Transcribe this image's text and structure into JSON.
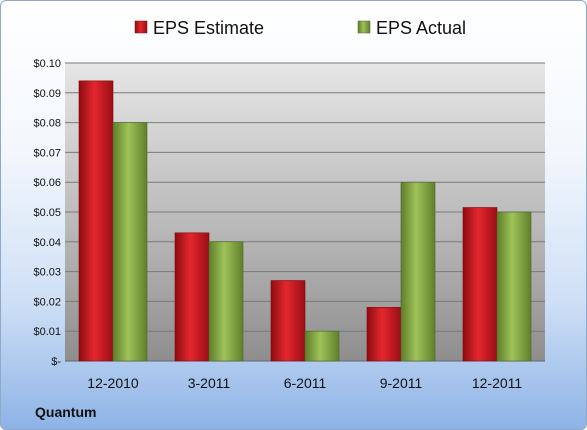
{
  "colors": {
    "estimate": "#c8161d",
    "actual": "#8db24a"
  },
  "footer": {
    "company": "Quantum"
  },
  "chart_data": {
    "type": "bar",
    "categories": [
      "12-2010",
      "3-2011",
      "6-2011",
      "9-2011",
      "12-2011"
    ],
    "series": [
      {
        "name": "EPS Estimate",
        "values": [
          0.094,
          0.043,
          0.027,
          0.018,
          0.0515
        ]
      },
      {
        "name": "EPS Actual",
        "values": [
          0.08,
          0.04,
          0.01,
          0.06,
          0.05
        ]
      }
    ],
    "ylim": [
      0,
      0.1
    ],
    "yticks": [
      0,
      0.01,
      0.02,
      0.03,
      0.04,
      0.05,
      0.06,
      0.07,
      0.08,
      0.09,
      0.1
    ],
    "ytick_labels": [
      "$-",
      "$0.01",
      "$0.02",
      "$0.03",
      "$0.04",
      "$0.05",
      "$0.06",
      "$0.07",
      "$0.08",
      "$0.09",
      "$0.10"
    ],
    "legend_position": "top",
    "grid": true
  }
}
